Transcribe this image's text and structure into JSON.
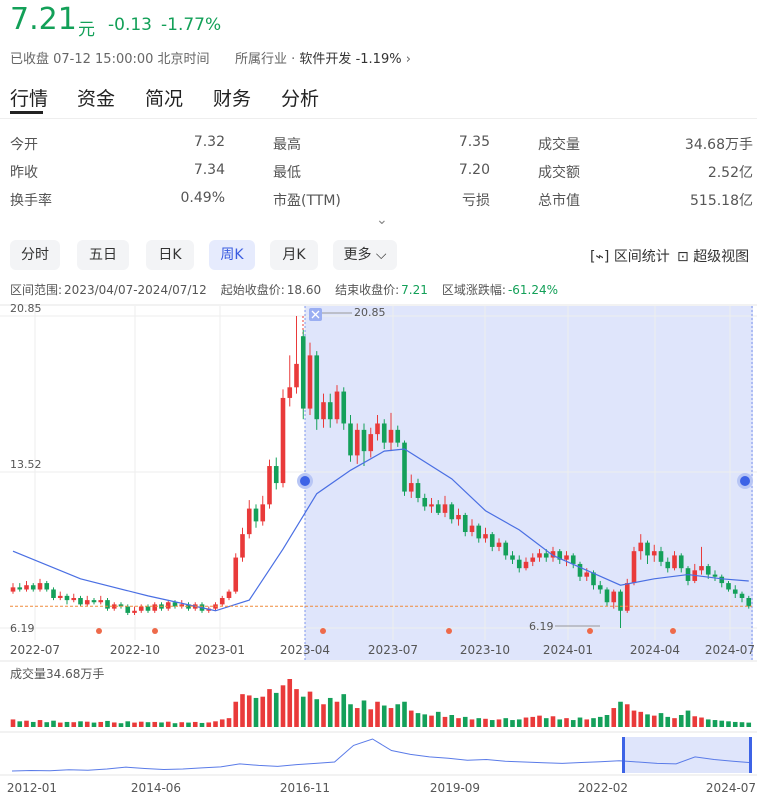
{
  "quote": {
    "price": "7.21",
    "unit": "元",
    "change": "-0.13",
    "change_pct": "-1.77%",
    "status": "已收盘 07-12 15:00:00 北京时间",
    "industry_label": "所属行业",
    "industry": "软件开发",
    "industry_pct": "-1.19%"
  },
  "tabs": [
    "行情",
    "资金",
    "简况",
    "财务",
    "分析"
  ],
  "stats": [
    [
      [
        "今开",
        "7.32"
      ],
      [
        "最高",
        "7.35"
      ],
      [
        "成交量",
        "34.68万手"
      ]
    ],
    [
      [
        "昨收",
        "7.34"
      ],
      [
        "最低",
        "7.20"
      ],
      [
        "成交额",
        "2.52亿"
      ]
    ],
    [
      [
        "换手率",
        "0.49%"
      ],
      [
        "市盈(TTM)",
        "亏损"
      ],
      [
        "总市值",
        "515.18亿"
      ]
    ]
  ],
  "periods": [
    "分时",
    "五日",
    "日K",
    "周K",
    "月K",
    "更多"
  ],
  "tools": [
    "区间统计",
    "超级视图"
  ],
  "range_info": [
    [
      "区间范围:",
      "2023/04/07-2024/07/12"
    ],
    [
      "起始收盘价:",
      "18.60"
    ],
    [
      "结束收盘价:",
      "7.21"
    ],
    [
      "区域涨跌幅:",
      "-61.24%"
    ]
  ],
  "chart_data": {
    "type": "candlestick",
    "up_color": "#e93a3a",
    "down_color": "#14a05a",
    "ma_color": "#4a6fe3",
    "ylim": [
      6.19,
      20.85
    ],
    "yticks": [
      6.19,
      13.52,
      20.85
    ],
    "x_labels": [
      "2022-07",
      "2022-10",
      "2023-01",
      "2023-04",
      "2023-07",
      "2023-10",
      "2024-01",
      "2024-04",
      "2024-07"
    ],
    "candles": [
      [
        7.9,
        8.1,
        8.3,
        7.8
      ],
      [
        8.1,
        8.0,
        8.3,
        7.9
      ],
      [
        8.0,
        8.2,
        8.4,
        7.9
      ],
      [
        8.2,
        8.0,
        8.3,
        7.9
      ],
      [
        8.0,
        8.3,
        8.5,
        7.9
      ],
      [
        8.3,
        8.0,
        8.4,
        7.9
      ],
      [
        8.0,
        7.6,
        8.1,
        7.5
      ],
      [
        7.6,
        7.7,
        7.9,
        7.5
      ],
      [
        7.7,
        7.5,
        7.8,
        7.3
      ],
      [
        7.5,
        7.6,
        7.8,
        7.4
      ],
      [
        7.6,
        7.3,
        7.7,
        7.2
      ],
      [
        7.3,
        7.5,
        7.7,
        7.2
      ],
      [
        7.5,
        7.4,
        7.6,
        7.3
      ],
      [
        7.4,
        7.5,
        7.7,
        7.3
      ],
      [
        7.5,
        7.1,
        7.6,
        7.0
      ],
      [
        7.1,
        7.3,
        7.4,
        7.0
      ],
      [
        7.3,
        7.2,
        7.4,
        7.1
      ],
      [
        7.2,
        6.9,
        7.3,
        6.8
      ],
      [
        6.9,
        7.0,
        7.2,
        6.8
      ],
      [
        7.0,
        7.2,
        7.3,
        6.9
      ],
      [
        7.2,
        7.0,
        7.3,
        6.9
      ],
      [
        7.0,
        7.3,
        7.4,
        6.9
      ],
      [
        7.3,
        7.1,
        7.4,
        7.0
      ],
      [
        7.1,
        7.4,
        7.5,
        7.0
      ],
      [
        7.4,
        7.2,
        7.5,
        7.1
      ],
      [
        7.2,
        7.3,
        7.5,
        7.1
      ],
      [
        7.3,
        7.1,
        7.4,
        7.0
      ],
      [
        7.1,
        7.3,
        7.4,
        7.0
      ],
      [
        7.3,
        7.0,
        7.4,
        6.9
      ],
      [
        7.0,
        7.1,
        7.2,
        6.9
      ],
      [
        7.1,
        7.3,
        7.4,
        7.0
      ],
      [
        7.3,
        7.6,
        7.7,
        7.2
      ],
      [
        7.6,
        7.9,
        8.0,
        7.5
      ],
      [
        7.9,
        9.5,
        9.7,
        7.8
      ],
      [
        9.5,
        10.6,
        10.9,
        9.3
      ],
      [
        10.6,
        11.8,
        12.2,
        10.4
      ],
      [
        11.8,
        11.2,
        12.0,
        10.9
      ],
      [
        11.2,
        12.0,
        12.4,
        11.0
      ],
      [
        12.0,
        13.8,
        14.1,
        11.8
      ],
      [
        13.8,
        13.0,
        14.2,
        12.7
      ],
      [
        13.0,
        17.0,
        17.4,
        12.8
      ],
      [
        17.0,
        17.5,
        19.0,
        16.6
      ],
      [
        17.5,
        18.6,
        20.85,
        17.2
      ],
      [
        19.9,
        16.5,
        20.2,
        16.0
      ],
      [
        16.5,
        19.0,
        19.6,
        16.2
      ],
      [
        19.0,
        16.0,
        19.2,
        15.5
      ],
      [
        16.0,
        16.8,
        17.2,
        15.6
      ],
      [
        16.8,
        16.0,
        17.2,
        15.6
      ],
      [
        16.0,
        17.3,
        17.6,
        15.8
      ],
      [
        17.3,
        15.8,
        17.5,
        15.5
      ],
      [
        15.8,
        14.3,
        16.2,
        14.0
      ],
      [
        14.3,
        15.5,
        15.8,
        13.9
      ],
      [
        15.5,
        14.5,
        15.8,
        13.8
      ],
      [
        14.5,
        15.3,
        15.6,
        14.2
      ],
      [
        15.3,
        15.8,
        16.2,
        15.0
      ],
      [
        15.8,
        14.9,
        16.0,
        14.6
      ],
      [
        14.9,
        15.5,
        16.3,
        14.5
      ],
      [
        15.5,
        14.9,
        15.7,
        14.7
      ],
      [
        14.9,
        12.6,
        15.0,
        12.4
      ],
      [
        12.6,
        13.0,
        13.4,
        12.3
      ],
      [
        13.0,
        12.3,
        13.2,
        12.1
      ],
      [
        12.3,
        11.9,
        12.5,
        11.7
      ],
      [
        11.9,
        12.0,
        12.3,
        11.6
      ],
      [
        12.0,
        11.6,
        12.2,
        11.5
      ],
      [
        11.6,
        12.0,
        12.4,
        11.4
      ],
      [
        12.0,
        11.3,
        12.1,
        11.1
      ],
      [
        11.3,
        11.5,
        11.8,
        11.0
      ],
      [
        11.5,
        10.7,
        11.6,
        10.5
      ],
      [
        10.7,
        11.0,
        11.3,
        10.5
      ],
      [
        11.0,
        10.4,
        11.1,
        10.2
      ],
      [
        10.4,
        10.6,
        10.9,
        10.2
      ],
      [
        10.6,
        10.0,
        10.7,
        9.8
      ],
      [
        10.0,
        10.2,
        10.4,
        9.8
      ],
      [
        10.2,
        9.6,
        10.3,
        9.4
      ],
      [
        9.6,
        9.4,
        9.8,
        9.2
      ],
      [
        9.4,
        9.0,
        9.6,
        8.8
      ],
      [
        9.0,
        9.3,
        9.5,
        8.9
      ],
      [
        9.3,
        9.5,
        9.7,
        9.1
      ],
      [
        9.5,
        9.7,
        9.9,
        9.3
      ],
      [
        9.7,
        9.5,
        9.9,
        9.3
      ],
      [
        9.5,
        9.8,
        10.0,
        9.3
      ],
      [
        9.8,
        9.4,
        9.9,
        9.2
      ],
      [
        9.4,
        9.6,
        9.8,
        9.1
      ],
      [
        9.6,
        9.2,
        9.7,
        9.0
      ],
      [
        9.2,
        8.6,
        9.3,
        8.4
      ],
      [
        8.6,
        8.8,
        9.0,
        8.4
      ],
      [
        8.8,
        8.2,
        8.9,
        8.0
      ],
      [
        8.2,
        8.0,
        8.4,
        7.8
      ],
      [
        8.0,
        7.4,
        8.1,
        7.2
      ],
      [
        7.4,
        7.9,
        8.0,
        7.1
      ],
      [
        7.9,
        7.0,
        8.0,
        6.19
      ],
      [
        7.0,
        8.3,
        8.5,
        6.9
      ],
      [
        8.3,
        9.8,
        10.0,
        8.2
      ],
      [
        9.8,
        10.2,
        10.6,
        9.4
      ],
      [
        10.2,
        9.6,
        10.3,
        9.2
      ],
      [
        9.6,
        9.8,
        10.1,
        9.3
      ],
      [
        9.8,
        9.3,
        10.0,
        9.1
      ],
      [
        9.3,
        9.0,
        9.5,
        8.8
      ],
      [
        9.0,
        9.6,
        9.8,
        8.9
      ],
      [
        9.6,
        9.0,
        9.7,
        8.8
      ],
      [
        9.0,
        8.4,
        9.1,
        8.2
      ],
      [
        8.4,
        8.9,
        9.2,
        8.3
      ],
      [
        8.9,
        9.1,
        10.0,
        8.7
      ],
      [
        9.1,
        8.7,
        9.2,
        8.5
      ],
      [
        8.7,
        8.6,
        8.9,
        8.4
      ],
      [
        8.6,
        8.3,
        8.7,
        8.1
      ],
      [
        8.3,
        8.0,
        8.4,
        7.9
      ],
      [
        8.0,
        7.8,
        8.2,
        7.6
      ],
      [
        7.8,
        7.6,
        7.9,
        7.4
      ],
      [
        7.6,
        7.21,
        7.7,
        7.1
      ]
    ],
    "ma": {
      "x": [
        0,
        10,
        20,
        30,
        35,
        40,
        45,
        50,
        55,
        58,
        65,
        70,
        75,
        80,
        85,
        90,
        95,
        100,
        105,
        109
      ],
      "values": [
        9.8,
        8.5,
        7.7,
        7.0,
        7.5,
        9.9,
        12.5,
        13.6,
        14.5,
        14.6,
        13.2,
        11.7,
        10.8,
        9.6,
        8.9,
        8.2,
        8.5,
        8.7,
        8.5,
        8.4
      ]
    },
    "volume_label": "成交量34.68万手",
    "volume": [
      60,
      45,
      50,
      40,
      55,
      38,
      50,
      35,
      40,
      38,
      45,
      42,
      35,
      40,
      48,
      36,
      30,
      45,
      35,
      42,
      38,
      40,
      36,
      42,
      30,
      38,
      35,
      40,
      32,
      36,
      45,
      60,
      70,
      200,
      260,
      250,
      230,
      240,
      300,
      270,
      330,
      380,
      300,
      240,
      280,
      220,
      180,
      230,
      200,
      260,
      180,
      150,
      210,
      140,
      200,
      170,
      150,
      180,
      200,
      130,
      110,
      100,
      90,
      120,
      80,
      95,
      70,
      80,
      60,
      70,
      65,
      55,
      60,
      70,
      55,
      60,
      75,
      80,
      90,
      70,
      85,
      60,
      70,
      55,
      75,
      60,
      70,
      80,
      95,
      150,
      200,
      180,
      130,
      120,
      100,
      90,
      110,
      80,
      70,
      95,
      130,
      85,
      75,
      60,
      55,
      50,
      45,
      40,
      38,
      34.68
    ],
    "overview": {
      "values": [
        4,
        4.2,
        4.1,
        4.5,
        4.3,
        4.8,
        5.5,
        5.0,
        4.6,
        4.8,
        5.2,
        5.6,
        6.8,
        6.2,
        5.8,
        6.5,
        7.0,
        7.5,
        14,
        16.5,
        12,
        10.5,
        9.5,
        9,
        8.2,
        8.5,
        7.8,
        7.5,
        7.2,
        7.0,
        7.3,
        7.6,
        8.0,
        7.5,
        7.0,
        6.8,
        9.5,
        8.5,
        7.8,
        7.21
      ],
      "x_labels": [
        "2012-01",
        "2014-06",
        "2016-11",
        "2019-09",
        "2022-02",
        "2024-07"
      ]
    }
  }
}
